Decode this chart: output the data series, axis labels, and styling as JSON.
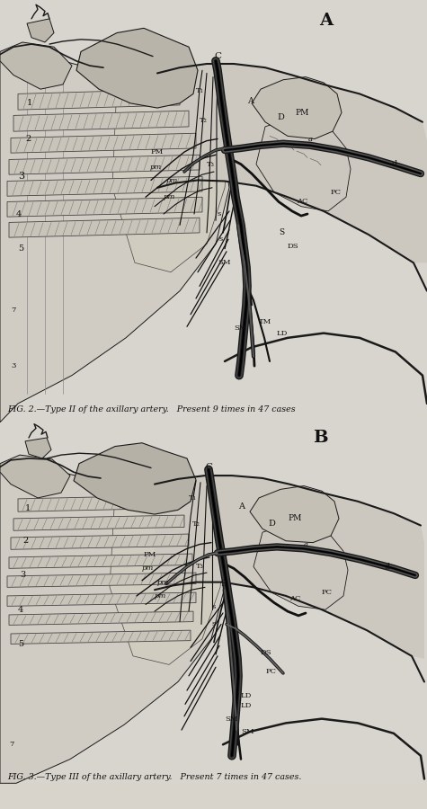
{
  "fig_width": 4.75,
  "fig_height": 9.0,
  "dpi": 100,
  "bg_color": "#d8d4cc",
  "caption_A": "FIG. 2.—Type II of the axillary artery.   Present 9 times in 47 cases",
  "caption_B": "FIG. 3.—Type III of the axillary artery.   Present 7 times in 47 cases.",
  "lc": "#1a1a1a",
  "vc": "#111111",
  "panel_a_label": "A",
  "panel_b_label": "B"
}
